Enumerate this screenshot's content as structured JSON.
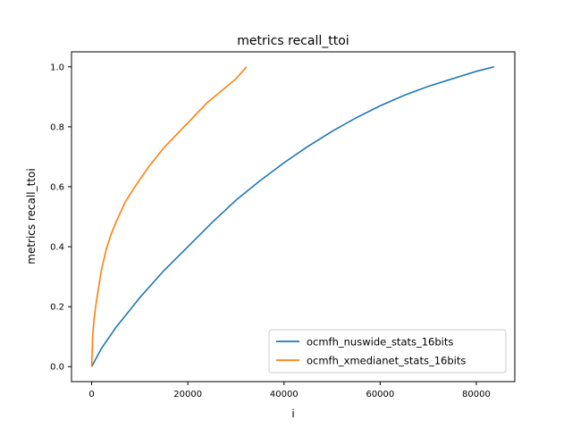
{
  "chart_data": {
    "type": "line",
    "title": "metrics recall_ttoi",
    "xlabel": "i",
    "ylabel": "metrics recall_ttoi",
    "xlim": [
      -4200,
      88000
    ],
    "ylim": [
      -0.05,
      1.05
    ],
    "xticks": [
      0,
      20000,
      40000,
      60000,
      80000
    ],
    "xtick_labels": [
      "0",
      "20000",
      "40000",
      "60000",
      "80000"
    ],
    "yticks": [
      0.0,
      0.2,
      0.4,
      0.6,
      0.8,
      1.0
    ],
    "ytick_labels": [
      "0.0",
      "0.2",
      "0.4",
      "0.6",
      "0.8",
      "1.0"
    ],
    "grid": false,
    "legend_position": "lower-right",
    "series": [
      {
        "name": "ocmfh_nuswide_stats_16bits",
        "color": "#1f77b4",
        "x": [
          0,
          2000,
          5000,
          10000,
          15000,
          20000,
          25000,
          30000,
          35000,
          40000,
          45000,
          50000,
          55000,
          60000,
          65000,
          70000,
          75000,
          80000,
          83700
        ],
        "y": [
          0.0,
          0.06,
          0.13,
          0.23,
          0.32,
          0.4,
          0.48,
          0.555,
          0.62,
          0.68,
          0.735,
          0.785,
          0.83,
          0.87,
          0.905,
          0.935,
          0.96,
          0.985,
          1.0
        ]
      },
      {
        "name": "ocmfh_xmedianet_stats_16bits",
        "color": "#ff7f0e",
        "x": [
          0,
          200,
          500,
          1000,
          2000,
          3000,
          4000,
          5000,
          7000,
          9000,
          12000,
          15000,
          18000,
          21000,
          24000,
          27000,
          30000,
          32200
        ],
        "y": [
          0.0,
          0.1,
          0.16,
          0.22,
          0.32,
          0.39,
          0.44,
          0.48,
          0.55,
          0.6,
          0.67,
          0.73,
          0.78,
          0.83,
          0.88,
          0.92,
          0.96,
          1.0
        ]
      }
    ]
  }
}
